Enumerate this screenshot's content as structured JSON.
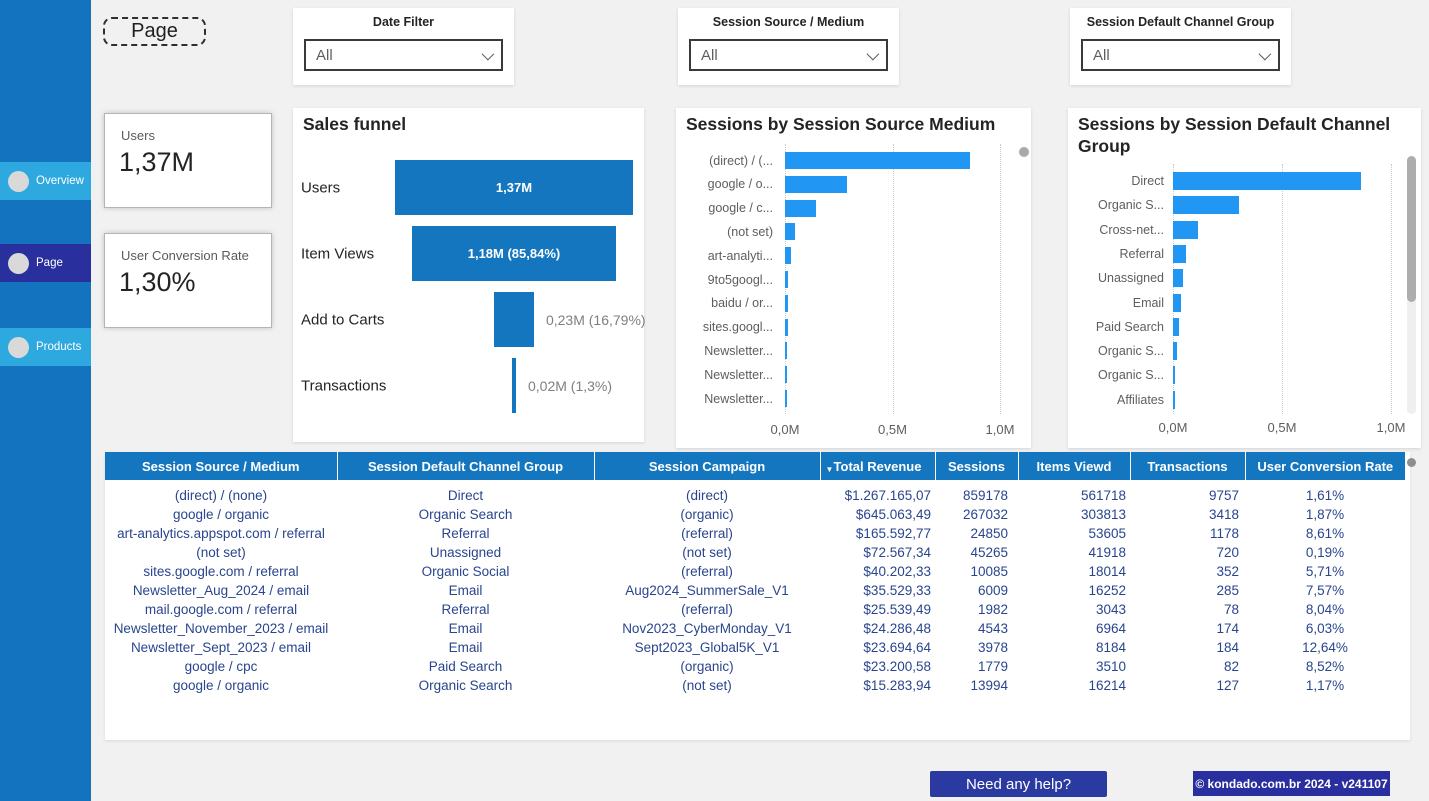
{
  "page": {
    "title": "Page",
    "help_button": "Need any help?",
    "version_badge": "© kondado.com.br 2024 - v241107"
  },
  "colors": {
    "sidebar_blue": "#1373BF",
    "nav_inactive_blue": "#2EA9E0",
    "nav_active_navy": "#2A2F9E",
    "steel_blue": "#1576C0",
    "bar_blue": "#2196F3",
    "table_text_blue": "#29458E",
    "background_gray": "#F1F1F2"
  },
  "sidebar": {
    "items": [
      {
        "label": "Overview",
        "active": false
      },
      {
        "label": "Page",
        "active": true
      },
      {
        "label": "Products",
        "active": false
      }
    ]
  },
  "filters": [
    {
      "label": "Date Filter",
      "value": "All"
    },
    {
      "label": "Session Source / Medium",
      "value": "All"
    },
    {
      "label": "Session Default Channel Group",
      "value": "All"
    }
  ],
  "kpis": [
    {
      "label": "Users",
      "value": "1,37M"
    },
    {
      "label": "User Conversion Rate",
      "value": "1,30%"
    }
  ],
  "chart_data": [
    {
      "type": "funnel",
      "title": "Sales funnel",
      "categories": [
        "Users",
        "Item Views",
        "Add to Carts",
        "Transactions"
      ],
      "values_m": [
        1.37,
        1.18,
        0.23,
        0.02
      ],
      "labels": [
        "1,37M",
        "1,18M (85,84%)",
        "0,23M (16,79%)",
        "0,02M (1,3%)"
      ],
      "label_placement": [
        "inside",
        "inside",
        "outside",
        "outside"
      ]
    },
    {
      "type": "bar",
      "orientation": "horizontal",
      "title": "Sessions by Session Source Medium",
      "categories": [
        "(direct) / (...",
        "google / o...",
        "google / c...",
        "(not set)",
        "art-analyti...",
        "9to5googl...",
        "baidu / or...",
        "sites.googl...",
        "Newsletter...",
        "Newsletter...",
        "Newsletter..."
      ],
      "values_m": [
        0.859,
        0.288,
        0.143,
        0.047,
        0.028,
        0.016,
        0.014,
        0.012,
        0.009,
        0.007,
        0.006
      ],
      "xticks": [
        "0,0M",
        "0,5M",
        "1,0M"
      ],
      "xtick_values_m": [
        0,
        0.5,
        1.0
      ],
      "xlim_m": [
        0,
        1.05
      ],
      "grid": "dotted-vertical",
      "has_scrollbar": true
    },
    {
      "type": "bar",
      "orientation": "horizontal",
      "title": "Sessions by Session Default Channel Group",
      "categories": [
        "Direct",
        "Organic S...",
        "Cross-net...",
        "Referral",
        "Unassigned",
        "Email",
        "Paid Search",
        "Organic S...",
        "Organic S...",
        "Affiliates"
      ],
      "values_m": [
        0.861,
        0.303,
        0.115,
        0.06,
        0.046,
        0.037,
        0.028,
        0.018,
        0.009,
        0.008
      ],
      "xticks": [
        "0,0M",
        "0,5M",
        "1,0M"
      ],
      "xtick_values_m": [
        0,
        0.5,
        1.0
      ],
      "xlim_m": [
        0,
        1.05
      ],
      "grid": "dotted-vertical",
      "has_scrollbar": true
    }
  ],
  "table": {
    "columns": [
      "Session Source / Medium",
      "Session Default Channel Group",
      "Session Campaign",
      "Total Revenue",
      "Sessions",
      "Items Viewd",
      "Transactions",
      "User Conversion Rate"
    ],
    "sorted_column": "Total Revenue",
    "sort_direction": "desc",
    "rows": [
      [
        "(direct) / (none)",
        "Direct",
        "(direct)",
        "$1.267.165,07",
        "859178",
        "561718",
        "9757",
        "1,61%"
      ],
      [
        "google / organic",
        "Organic Search",
        "(organic)",
        "$645.063,49",
        "267032",
        "303813",
        "3418",
        "1,87%"
      ],
      [
        "art-analytics.appspot.com / referral",
        "Referral",
        "(referral)",
        "$165.592,77",
        "24850",
        "53605",
        "1178",
        "8,61%"
      ],
      [
        "(not set)",
        "Unassigned",
        "(not set)",
        "$72.567,34",
        "45265",
        "41918",
        "720",
        "0,19%"
      ],
      [
        "sites.google.com / referral",
        "Organic Social",
        "(referral)",
        "$40.202,33",
        "10085",
        "18014",
        "352",
        "5,71%"
      ],
      [
        "Newsletter_Aug_2024 / email",
        "Email",
        "Aug2024_SummerSale_V1",
        "$35.529,33",
        "6009",
        "16252",
        "285",
        "7,57%"
      ],
      [
        "mail.google.com / referral",
        "Referral",
        "(referral)",
        "$25.539,49",
        "1982",
        "3043",
        "78",
        "8,04%"
      ],
      [
        "Newsletter_November_2023 / email",
        "Email",
        "Nov2023_CyberMonday_V1",
        "$24.286,48",
        "4543",
        "6964",
        "174",
        "6,03%"
      ],
      [
        "Newsletter_Sept_2023 / email",
        "Email",
        "Sept2023_Global5K_V1",
        "$23.694,64",
        "3978",
        "8184",
        "184",
        "12,64%"
      ],
      [
        "google / cpc",
        "Paid Search",
        "(organic)",
        "$23.200,58",
        "1779",
        "3510",
        "82",
        "8,52%"
      ],
      [
        "google / organic",
        "Organic Search",
        "(not set)",
        "$15.283,94",
        "13994",
        "16214",
        "127",
        "1,17%"
      ]
    ]
  }
}
